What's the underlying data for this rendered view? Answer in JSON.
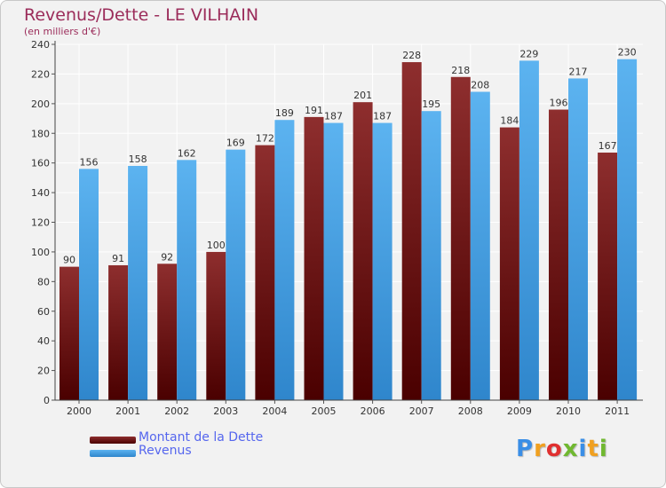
{
  "header": {
    "title": "Revenus/Dette - LE VILHAIN",
    "subtitle": "(en milliers d'€)"
  },
  "chart_data": {
    "type": "bar",
    "categories": [
      "2000",
      "2001",
      "2002",
      "2003",
      "2004",
      "2005",
      "2006",
      "2007",
      "2008",
      "2009",
      "2010",
      "2011"
    ],
    "series": [
      {
        "name": "Montant de la Dette",
        "values": [
          90,
          91,
          92,
          100,
          172,
          191,
          201,
          228,
          218,
          184,
          196,
          167
        ],
        "color": "#7a1b1b"
      },
      {
        "name": "Revenus",
        "values": [
          156,
          158,
          162,
          169,
          189,
          187,
          187,
          195,
          208,
          229,
          217,
          230
        ],
        "color": "#4aa8ec"
      }
    ],
    "ylim": [
      0,
      240
    ],
    "yticks": [
      0,
      20,
      40,
      60,
      80,
      100,
      120,
      140,
      160,
      180,
      200,
      220,
      240
    ],
    "grid": true,
    "legend_position": "bottom-left"
  },
  "logo": {
    "letters": [
      "P",
      "r",
      "o",
      "x",
      "i",
      "t",
      "i"
    ],
    "colors": [
      "#3a8ee6",
      "#f0a020",
      "#e03030",
      "#70b830",
      "#3a8ee6",
      "#f0a020",
      "#70b830"
    ]
  }
}
